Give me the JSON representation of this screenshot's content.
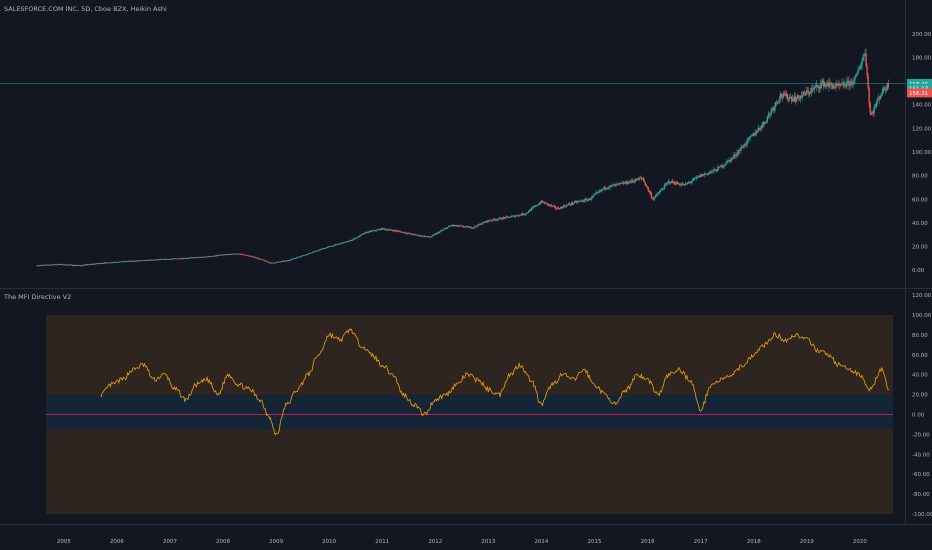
{
  "main_chart": {
    "title": "SALESFORCE.COM INC, 5D, Cboe BZX, Heikin Ashi",
    "y_ticks": [
      "200.00",
      "180.00",
      "160.00",
      "140.00",
      "120.00",
      "100.00",
      "80.00",
      "60.00",
      "40.00",
      "20.00",
      "0.00"
    ],
    "price_labels": [
      {
        "text": "158.46",
        "color": "#26a69a"
      },
      {
        "text": "161.13",
        "color": "#26a69a"
      },
      {
        "text": "156.31",
        "color": "#ef5350"
      }
    ]
  },
  "indicator": {
    "title": "The MFI Directive V2",
    "y_ticks": [
      "120.00",
      "100.00",
      "80.00",
      "60.00",
      "40.00",
      "20.00",
      "0.00",
      "-20.00",
      "-40.00",
      "-60.00",
      "-80.00",
      "-100.00"
    ]
  },
  "x_axis": {
    "labels": [
      "2005",
      "2006",
      "2007",
      "2008",
      "2009",
      "2010",
      "2011",
      "2012",
      "2013",
      "2014",
      "2015",
      "2016",
      "2017",
      "2018",
      "2019",
      "2020"
    ]
  },
  "colors": {
    "background": "#131722",
    "up": "#26a69a",
    "down": "#ef5350",
    "mfi_line": "#f0a30a",
    "zero_line": "#e91e63",
    "overbought_zone": "#2e2521",
    "neutral_zone": "#162536"
  },
  "chart_data": [
    {
      "type": "candlestick",
      "title": "SALESFORCE.COM INC, 5D, Cboe BZX, Heikin Ashi",
      "ylim": [
        -10,
        210
      ],
      "x_range": [
        2004.4,
        2020.7
      ],
      "series": [
        {
          "name": "",
          "points": [
            [
              2004.5,
              4
            ],
            [
              2004.9,
              5
            ],
            [
              2005.3,
              4
            ],
            [
              2005.7,
              6
            ],
            [
              2006.0,
              7
            ],
            [
              2006.4,
              8
            ],
            [
              2006.8,
              9
            ],
            [
              2007.2,
              10
            ],
            [
              2007.6,
              11
            ],
            [
              2008.0,
              13
            ],
            [
              2008.3,
              14
            ],
            [
              2008.6,
              11
            ],
            [
              2008.9,
              6
            ],
            [
              2009.2,
              8
            ],
            [
              2009.6,
              14
            ],
            [
              2010.0,
              20
            ],
            [
              2010.4,
              25
            ],
            [
              2010.7,
              32
            ],
            [
              2011.0,
              35
            ],
            [
              2011.3,
              33
            ],
            [
              2011.6,
              30
            ],
            [
              2011.9,
              28
            ],
            [
              2012.3,
              38
            ],
            [
              2012.7,
              36
            ],
            [
              2013.0,
              42
            ],
            [
              2013.4,
              45
            ],
            [
              2013.7,
              48
            ],
            [
              2014.0,
              58
            ],
            [
              2014.3,
              52
            ],
            [
              2014.6,
              57
            ],
            [
              2014.9,
              60
            ],
            [
              2015.2,
              70
            ],
            [
              2015.6,
              74
            ],
            [
              2015.9,
              78
            ],
            [
              2016.1,
              60
            ],
            [
              2016.4,
              75
            ],
            [
              2016.7,
              72
            ],
            [
              2017.0,
              80
            ],
            [
              2017.3,
              85
            ],
            [
              2017.6,
              95
            ],
            [
              2017.9,
              110
            ],
            [
              2018.2,
              125
            ],
            [
              2018.5,
              148
            ],
            [
              2018.8,
              145
            ],
            [
              2019.0,
              150
            ],
            [
              2019.3,
              158
            ],
            [
              2019.6,
              155
            ],
            [
              2019.9,
              160
            ],
            [
              2020.1,
              185
            ],
            [
              2020.2,
              130
            ],
            [
              2020.4,
              150
            ],
            [
              2020.55,
              158
            ]
          ]
        }
      ]
    },
    {
      "type": "line",
      "title": "The MFI Directive V2",
      "ylim": [
        -100,
        100
      ],
      "reference_lines": [
        0
      ],
      "zones": [
        {
          "from": -15,
          "to": 100,
          "color": "#2e2521"
        },
        {
          "from": -15,
          "to": 20,
          "color": "#162536"
        }
      ],
      "series": [
        {
          "name": "",
          "x": [
            2005.7,
            2005.9,
            2006.1,
            2006.3,
            2006.5,
            2006.7,
            2006.9,
            2007.1,
            2007.3,
            2007.5,
            2007.7,
            2007.9,
            2008.1,
            2008.3,
            2008.5,
            2008.7,
            2008.85,
            2009.0,
            2009.2,
            2009.4,
            2009.6,
            2009.8,
            2010.0,
            2010.2,
            2010.4,
            2010.6,
            2010.8,
            2011.0,
            2011.2,
            2011.4,
            2011.6,
            2011.8,
            2012.0,
            2012.2,
            2012.4,
            2012.6,
            2012.8,
            2013.0,
            2013.2,
            2013.4,
            2013.6,
            2013.8,
            2014.0,
            2014.2,
            2014.4,
            2014.6,
            2014.8,
            2015.0,
            2015.2,
            2015.4,
            2015.6,
            2015.8,
            2016.0,
            2016.2,
            2016.4,
            2016.6,
            2016.8,
            2017.0,
            2017.2,
            2017.4,
            2017.6,
            2017.8,
            2018.0,
            2018.2,
            2018.4,
            2018.6,
            2018.8,
            2019.0,
            2019.2,
            2019.4,
            2019.6,
            2019.8,
            2020.0,
            2020.2,
            2020.4,
            2020.55
          ],
          "values": [
            20,
            30,
            35,
            45,
            50,
            35,
            40,
            25,
            15,
            30,
            35,
            20,
            40,
            30,
            25,
            15,
            0,
            -20,
            10,
            25,
            40,
            60,
            80,
            75,
            85,
            70,
            60,
            50,
            40,
            20,
            10,
            0,
            15,
            20,
            30,
            40,
            35,
            25,
            20,
            40,
            50,
            35,
            10,
            30,
            40,
            35,
            45,
            30,
            20,
            10,
            25,
            40,
            35,
            20,
            40,
            45,
            35,
            5,
            30,
            35,
            40,
            50,
            60,
            70,
            80,
            75,
            80,
            75,
            65,
            60,
            50,
            45,
            40,
            25,
            45,
            25
          ]
        }
      ]
    }
  ]
}
